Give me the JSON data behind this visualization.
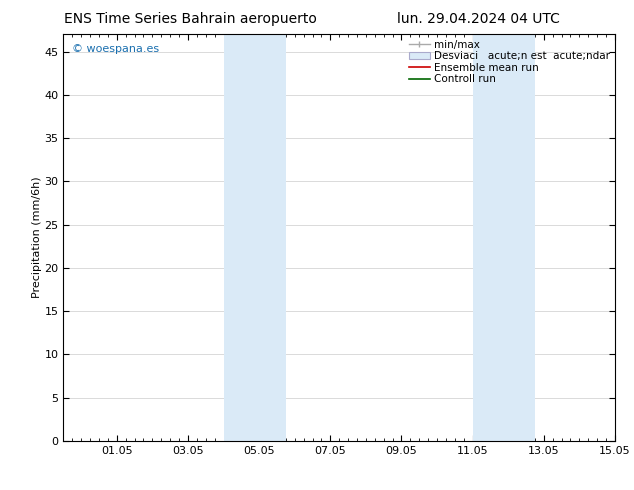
{
  "title_left": "ENS Time Series Bahrain aeropuerto",
  "title_right": "lun. 29.04.2024 04 UTC",
  "ylabel": "Precipitation (mm/6h)",
  "watermark": "© woespana.es",
  "watermark_color": "#1a6faf",
  "xlim_start": -0.5,
  "xlim_end": 15.0,
  "ylim_bottom": 0,
  "ylim_top": 47,
  "yticks": [
    0,
    5,
    10,
    15,
    20,
    25,
    30,
    35,
    40,
    45
  ],
  "xtick_labels": [
    "01.05",
    "03.05",
    "05.05",
    "07.05",
    "09.05",
    "11.05",
    "13.05",
    "15.05"
  ],
  "xtick_positions": [
    1,
    3,
    5,
    7,
    9,
    11,
    13,
    15
  ],
  "background_color": "#ffffff",
  "plot_bg_color": "#ffffff",
  "shaded_bands": [
    {
      "x_start": 4.0,
      "x_end": 5.75,
      "color": "#daeaf7"
    },
    {
      "x_start": 11.0,
      "x_end": 12.75,
      "color": "#daeaf7"
    }
  ],
  "font_size_title": 10,
  "font_size_axis_label": 8,
  "font_size_legend": 7.5,
  "font_size_watermark": 8,
  "tick_font_size": 8,
  "grid_color": "#cccccc",
  "axes_color": "#000000"
}
